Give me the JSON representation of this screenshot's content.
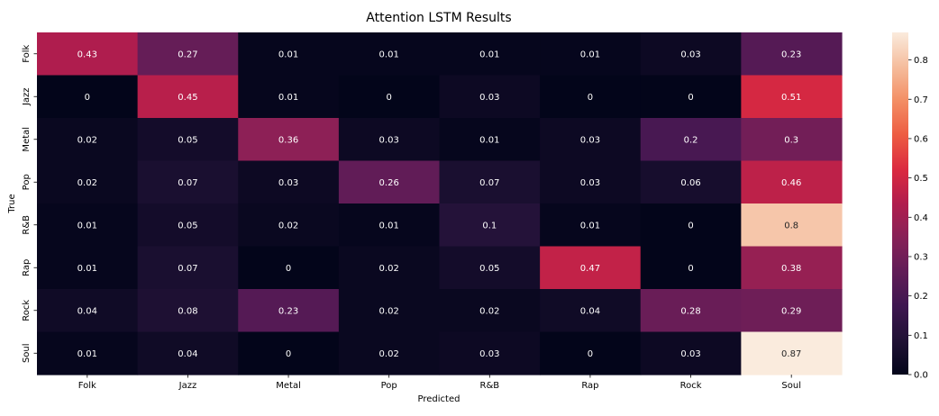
{
  "chart_data": {
    "type": "heatmap",
    "title": "Attention LSTM Results",
    "xlabel": "Predicted",
    "ylabel": "True",
    "x_categories": [
      "Folk",
      "Jazz",
      "Metal",
      "Pop",
      "R&B",
      "Rap",
      "Rock",
      "Soul"
    ],
    "y_categories": [
      "Folk",
      "Jazz",
      "Metal",
      "Pop",
      "R&B",
      "Rap",
      "Rock",
      "Soul"
    ],
    "values": [
      [
        "0.43",
        "0.27",
        "0.01",
        "0.01",
        "0.01",
        "0.01",
        "0.03",
        "0.23"
      ],
      [
        "0",
        "0.45",
        "0.01",
        "0",
        "0.03",
        "0",
        "0",
        "0.51"
      ],
      [
        "0.02",
        "0.05",
        "0.36",
        "0.03",
        "0.01",
        "0.03",
        "0.2",
        "0.3"
      ],
      [
        "0.02",
        "0.07",
        "0.03",
        "0.26",
        "0.07",
        "0.03",
        "0.06",
        "0.46"
      ],
      [
        "0.01",
        "0.05",
        "0.02",
        "0.01",
        "0.1",
        "0.01",
        "0",
        "0.8"
      ],
      [
        "0.01",
        "0.07",
        "0",
        "0.02",
        "0.05",
        "0.47",
        "0",
        "0.38"
      ],
      [
        "0.04",
        "0.08",
        "0.23",
        "0.02",
        "0.02",
        "0.04",
        "0.28",
        "0.29"
      ],
      [
        "0.01",
        "0.04",
        "0",
        "0.02",
        "0.03",
        "0",
        "0.03",
        "0.87"
      ]
    ],
    "colorbar": {
      "min": 0,
      "max": 0.87,
      "ticks": [
        "0.0",
        "0.1",
        "0.2",
        "0.3",
        "0.4",
        "0.5",
        "0.6",
        "0.7",
        "0.8"
      ],
      "colormap": "rocket"
    },
    "grid": false,
    "legend": "colorbar-right"
  }
}
